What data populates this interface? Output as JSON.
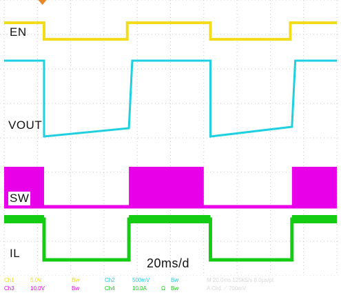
{
  "chart_data": {
    "type": "line",
    "instrument": "oscilloscope",
    "time_per_div": "20ms/d",
    "x_divisions": 10,
    "y_divisions": 8,
    "grid": true,
    "trigger_marker_color": "#e8862a",
    "x": [
      0.0,
      0.6,
      1.0,
      1.8,
      2.2,
      2.6,
      3.8,
      4.2,
      4.8,
      6.0,
      6.4,
      7.0,
      7.8,
      8.6,
      9.0,
      10.0
    ],
    "series": [
      {
        "name": "EN",
        "label": "EN",
        "color": "#f2dc1c",
        "values": [
          1,
          1,
          0,
          0,
          0,
          1,
          1,
          0,
          0,
          0,
          0,
          0,
          0,
          1,
          1,
          1
        ]
      },
      {
        "name": "VOUT",
        "label": "VOUT",
        "color": "#1fd0e0",
        "values": [
          1,
          1,
          0.02,
          0.03,
          0.04,
          0.2,
          1,
          1,
          0.03,
          0.04,
          0.05,
          0.06,
          0.08,
          1,
          1,
          1
        ]
      },
      {
        "name": "SW",
        "label": "SW",
        "color": "#e800e8",
        "values": [
          1,
          1,
          0,
          0,
          0,
          1,
          1,
          0,
          0,
          0,
          0,
          0,
          1,
          1,
          1,
          1
        ]
      },
      {
        "name": "IL",
        "label": "IL",
        "color": "#14cc14",
        "values": [
          1,
          1,
          0,
          0,
          0,
          1,
          1,
          0,
          0,
          0,
          0,
          0,
          1,
          1,
          1,
          1
        ]
      }
    ],
    "ylabel_channels": [
      "EN",
      "VOUT",
      "SW",
      "IL"
    ],
    "edges": {
      "EN": {
        "fall": [
          1.2,
          6.2
        ],
        "rise": [
          3.7,
          8.6
        ]
      },
      "VOUT": {
        "fall": [
          1.2,
          6.2
        ],
        "ramp_start": [
          3.75,
          8.65
        ],
        "ramp_end": [
          3.85,
          8.75
        ]
      },
      "SW": {
        "on_start": [
          0.0,
          3.75,
          8.65
        ],
        "on_end": [
          1.2,
          6.0,
          10.0
        ]
      },
      "IL": {
        "fall": [
          1.2,
          6.2
        ],
        "rise": [
          3.75,
          8.65
        ]
      }
    }
  },
  "labels": {
    "en": "EN",
    "vout": "VOUT",
    "sw": "SW",
    "il": "IL",
    "timebase": "20ms/d"
  },
  "readout": {
    "ch1": "Ch1",
    "ch1_scale": "5.0V",
    "ch1_bw": "Bw",
    "ch2": "Ch2",
    "ch2_scale": "500mV",
    "ch2_bw": "Bw",
    "ch3": "Ch3",
    "ch3_scale": "10.0V",
    "ch3_bw": "Bw",
    "ch4": "Ch4",
    "ch4_scale": "10.0A",
    "ch4_ohm": "Ω",
    "ch4_bw": "Bw",
    "timing": "M 20.0ms 125kS/s   8.0µs/pt",
    "trigger": "A Ch1 ⟋ 700mV"
  },
  "colors": {
    "grid": "#c8c8c8",
    "ch1": "#f2dc1c",
    "ch2": "#1fd0e0",
    "ch3": "#e800e8",
    "ch4": "#14cc14"
  }
}
